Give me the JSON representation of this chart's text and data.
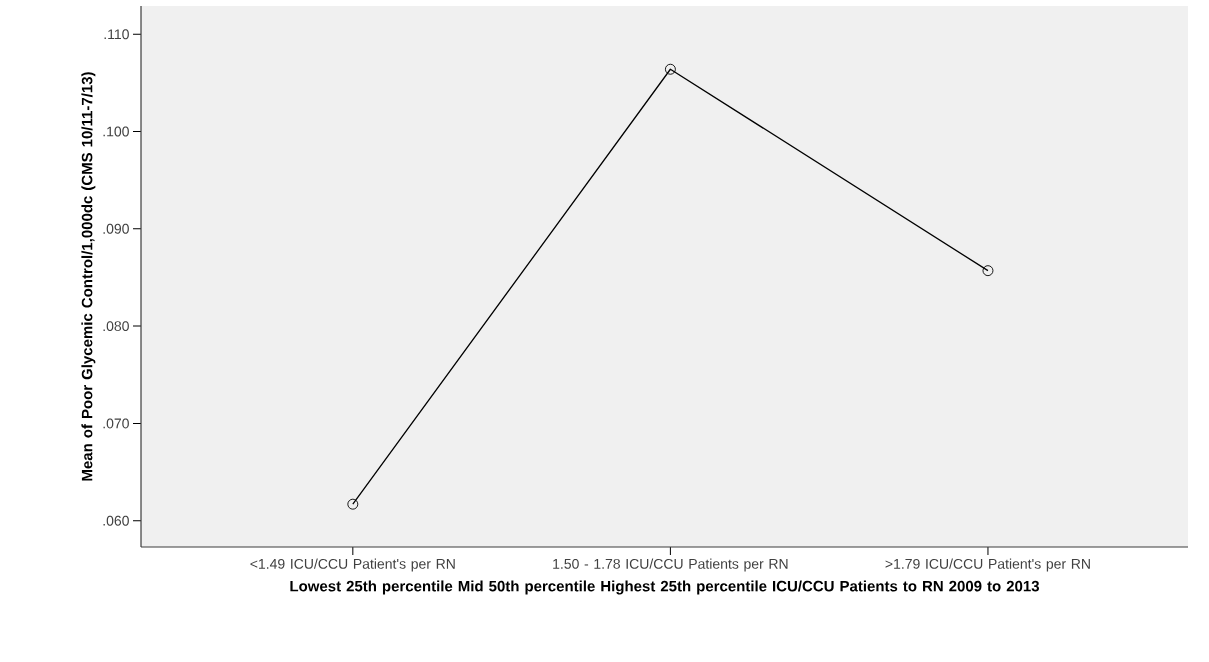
{
  "chart_data": {
    "type": "line",
    "xlabel": "Lowest 25th percentile  Mid 50th percentile   Highest 25th percentile ICU/CCU Patients to RN 2009 to 2013",
    "ylabel": "Mean of Poor Glycemic Control/1,000dc (CMS 10/11-7/13)",
    "categories": [
      "<1.49 ICU/CCU Patient's per RN",
      "1.50 - 1.78 ICU/CCU Patients per RN",
      ">1.79 ICU/CCU Patient's per RN"
    ],
    "values": [
      0.0617,
      0.1064,
      0.0857
    ],
    "color": "#000000",
    "marker": "circle",
    "ylim": [
      0.0573,
      0.1129
    ],
    "yticks": [
      {
        "value": 0.06,
        "label": ".060"
      },
      {
        "value": 0.07,
        "label": ".070"
      },
      {
        "value": 0.08,
        "label": ".080"
      },
      {
        "value": 0.09,
        "label": ".090"
      },
      {
        "value": 0.1,
        "label": ".100"
      },
      {
        "value": 0.11,
        "label": ".110"
      }
    ]
  }
}
